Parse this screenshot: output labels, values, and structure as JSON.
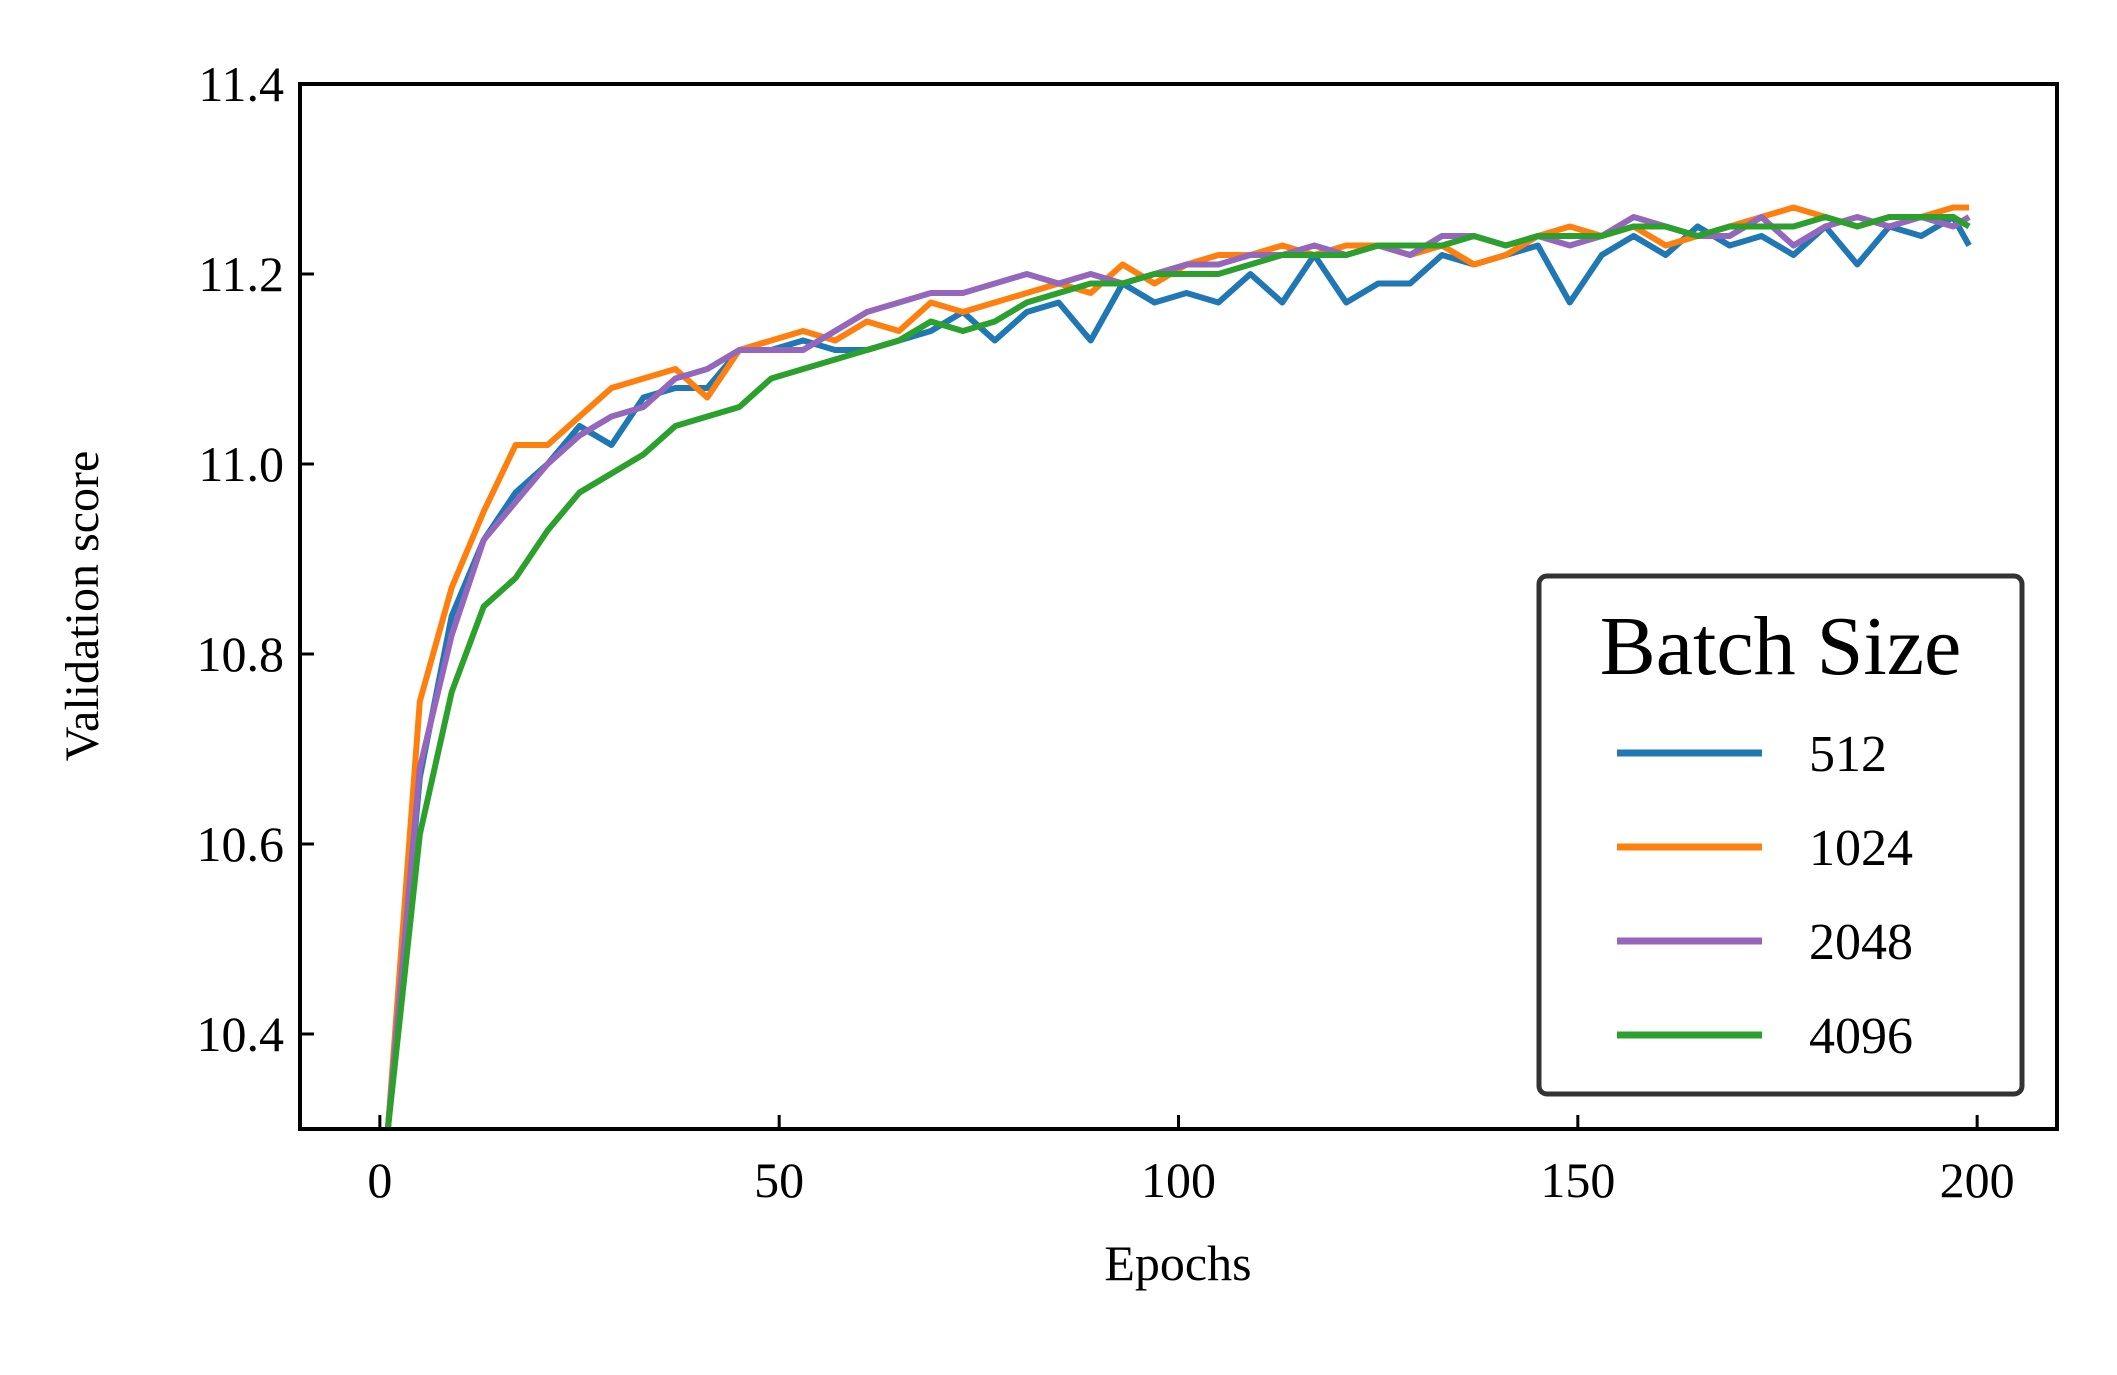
{
  "chart_data": {
    "type": "line",
    "xlabel": "Epochs",
    "ylabel": "Validation score",
    "legend_title": "Batch Size",
    "legend_position": "lower right",
    "xlim": [
      -10,
      210
    ],
    "ylim": [
      10.3,
      11.4
    ],
    "xticks": [
      0,
      50,
      100,
      150,
      200
    ],
    "yticks": [
      10.4,
      10.6,
      10.8,
      {
        "value": 11,
        "label": "11.0"
      },
      11.2,
      11.4
    ],
    "x": [
      1,
      5,
      9,
      13,
      17,
      21,
      25,
      29,
      33,
      37,
      41,
      45,
      49,
      53,
      57,
      61,
      65,
      69,
      73,
      77,
      81,
      85,
      89,
      93,
      97,
      101,
      105,
      109,
      113,
      117,
      121,
      125,
      129,
      133,
      137,
      141,
      145,
      149,
      153,
      157,
      161,
      165,
      169,
      173,
      177,
      181,
      185,
      189,
      193,
      197,
      199
    ],
    "series": [
      {
        "name": "512",
        "color": "#1f77b4",
        "values": [
          10.3,
          10.67,
          10.84,
          10.92,
          10.97,
          11.0,
          11.04,
          11.02,
          11.07,
          11.08,
          11.08,
          11.12,
          11.12,
          11.13,
          11.12,
          11.12,
          11.13,
          11.14,
          11.16,
          11.13,
          11.16,
          11.17,
          11.13,
          11.19,
          11.17,
          11.18,
          11.17,
          11.2,
          11.17,
          11.22,
          11.17,
          11.19,
          11.19,
          11.22,
          11.21,
          11.22,
          11.23,
          11.17,
          11.22,
          11.24,
          11.22,
          11.25,
          11.23,
          11.24,
          11.22,
          11.25,
          11.21,
          11.25,
          11.24,
          11.26,
          11.23
        ]
      },
      {
        "name": "1024",
        "color": "#ff7f0e",
        "values": [
          10.3,
          10.75,
          10.87,
          10.95,
          11.02,
          11.02,
          11.05,
          11.08,
          11.09,
          11.1,
          11.07,
          11.12,
          11.13,
          11.14,
          11.13,
          11.15,
          11.14,
          11.17,
          11.16,
          11.17,
          11.18,
          11.19,
          11.18,
          11.21,
          11.19,
          11.21,
          11.22,
          11.22,
          11.23,
          11.22,
          11.23,
          11.23,
          11.22,
          11.23,
          11.21,
          11.22,
          11.24,
          11.25,
          11.24,
          11.25,
          11.23,
          11.24,
          11.25,
          11.26,
          11.27,
          11.26,
          11.25,
          11.26,
          11.26,
          11.27,
          11.27
        ]
      },
      {
        "name": "2048",
        "color": "#9467bd",
        "values": [
          10.3,
          10.68,
          10.82,
          10.92,
          10.96,
          11.0,
          11.03,
          11.05,
          11.06,
          11.09,
          11.1,
          11.12,
          11.12,
          11.12,
          11.14,
          11.16,
          11.17,
          11.18,
          11.18,
          11.19,
          11.2,
          11.19,
          11.2,
          11.19,
          11.2,
          11.21,
          11.21,
          11.22,
          11.22,
          11.23,
          11.22,
          11.23,
          11.22,
          11.24,
          11.24,
          11.23,
          11.24,
          11.23,
          11.24,
          11.26,
          11.25,
          11.24,
          11.24,
          11.26,
          11.23,
          11.25,
          11.26,
          11.25,
          11.26,
          11.25,
          11.26
        ]
      },
      {
        "name": "4096",
        "color": "#2ca02c",
        "values": [
          10.3,
          10.61,
          10.76,
          10.85,
          10.88,
          10.93,
          10.97,
          10.99,
          11.01,
          11.04,
          11.05,
          11.06,
          11.09,
          11.1,
          11.11,
          11.12,
          11.13,
          11.15,
          11.14,
          11.15,
          11.17,
          11.18,
          11.19,
          11.19,
          11.2,
          11.2,
          11.2,
          11.21,
          11.22,
          11.22,
          11.22,
          11.23,
          11.23,
          11.23,
          11.24,
          11.23,
          11.24,
          11.24,
          11.24,
          11.25,
          11.25,
          11.24,
          11.25,
          11.25,
          11.25,
          11.26,
          11.25,
          11.26,
          11.26,
          11.26,
          11.25
        ]
      }
    ]
  }
}
